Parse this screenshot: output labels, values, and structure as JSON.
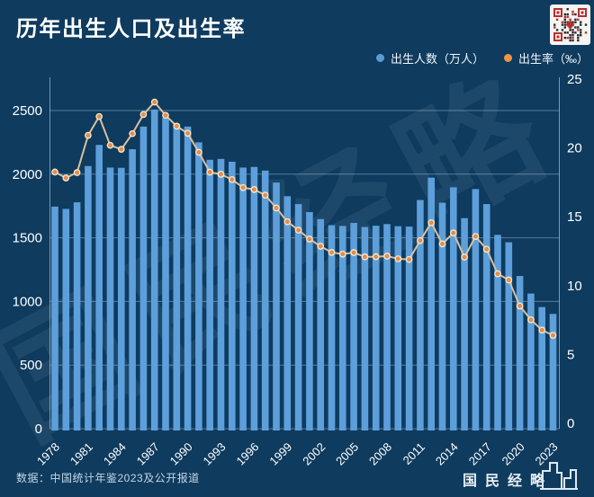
{
  "header": {
    "title": "历年出生人口及出生率"
  },
  "legend": {
    "births_label": "出生人数（万人）",
    "rate_label": "出生率（‰）"
  },
  "colors": {
    "background": "#0e3b5e",
    "bar": "#5d9fdb",
    "line": "#d9c09f",
    "marker_fill": "#e18f4e",
    "marker_ring": "#f6e8d2",
    "legend_bar_dot": "#5b9bd5",
    "legend_rate_dot": "#ef9440",
    "grid": "rgba(215,230,243,0.38)",
    "axis": "rgba(215,230,243,0.55)",
    "tick_text": "#ffffff",
    "qr_red": "#b5302f",
    "qr_dark": "#2a2a2a"
  },
  "chart_data": {
    "type": "bar",
    "title": "历年出生人口及出生率",
    "categories": [
      1978,
      1979,
      1980,
      1981,
      1982,
      1983,
      1984,
      1985,
      1986,
      1987,
      1988,
      1989,
      1990,
      1991,
      1992,
      1993,
      1994,
      1995,
      1996,
      1997,
      1998,
      1999,
      2000,
      2001,
      2002,
      2003,
      2004,
      2005,
      2006,
      2007,
      2008,
      2009,
      2010,
      2011,
      2012,
      2013,
      2014,
      2015,
      2016,
      2017,
      2018,
      2019,
      2020,
      2021,
      2022,
      2023
    ],
    "series": [
      {
        "name": "出生人数（万人）",
        "type": "bar",
        "axis": "left",
        "values": [
          1745,
          1727,
          1779,
          2064,
          2230,
          2052,
          2050,
          2196,
          2374,
          2508,
          2445,
          2396,
          2374,
          2250,
          2113,
          2120,
          2098,
          2052,
          2057,
          2028,
          1934,
          1827,
          1765,
          1702,
          1647,
          1599,
          1593,
          1617,
          1585,
          1595,
          1608,
          1591,
          1588,
          1797,
          1973,
          1776,
          1897,
          1655,
          1883,
          1765,
          1523,
          1465,
          1200,
          1062,
          956,
          902
        ]
      },
      {
        "name": "出生率（‰）",
        "type": "line",
        "axis": "right",
        "values": [
          18.25,
          17.82,
          18.21,
          20.91,
          22.28,
          20.19,
          19.9,
          21.04,
          22.43,
          23.33,
          22.37,
          21.58,
          21.06,
          19.68,
          18.24,
          18.09,
          17.7,
          17.12,
          16.98,
          16.57,
          15.64,
          14.64,
          14.03,
          13.38,
          12.86,
          12.41,
          12.29,
          12.4,
          12.09,
          12.1,
          12.14,
          11.95,
          11.9,
          13.27,
          14.57,
          13.03,
          13.83,
          12.07,
          13.57,
          12.64,
          10.86,
          10.41,
          8.52,
          7.52,
          6.77,
          6.39
        ]
      }
    ],
    "left_axis": {
      "ticks": [
        0,
        500,
        1000,
        1500,
        2000,
        2500
      ],
      "range": [
        0,
        2500
      ]
    },
    "right_axis": {
      "ticks": [
        0,
        5,
        10,
        15,
        20,
        25
      ],
      "range": [
        0,
        25
      ]
    },
    "x_tick_years": [
      1978,
      1981,
      1984,
      1987,
      1990,
      1993,
      1996,
      1999,
      2002,
      2005,
      2008,
      2011,
      2014,
      2017,
      2020,
      2023
    ],
    "grid": true,
    "legend_position": "top-right",
    "watermark": "国民经略"
  },
  "footer": {
    "source": "数据：中国统计年鉴2023及公开报道",
    "logo_text": "国民经略"
  }
}
